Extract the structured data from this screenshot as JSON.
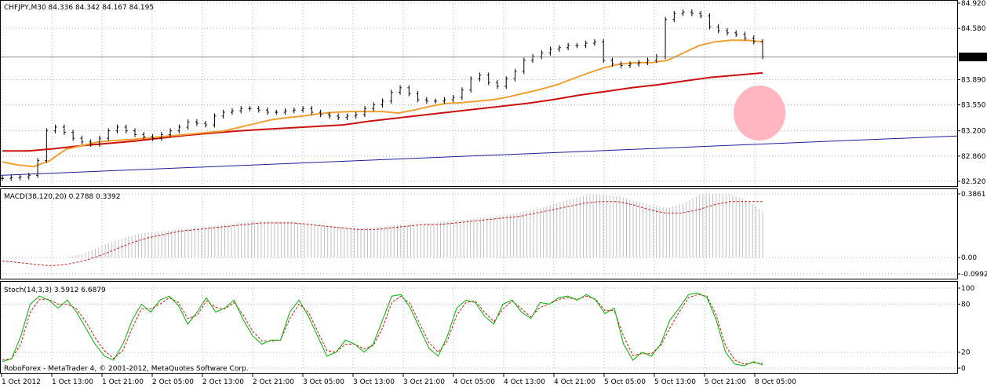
{
  "chart_data": [
    {
      "type": "ohlc",
      "panel": "main",
      "header": "CHFJPY,M30  84.336 84.342 84.167 84.195",
      "symbol": "CHFJPY",
      "timeframe": "M30",
      "last_ohlc": {
        "open": 84.336,
        "high": 84.342,
        "low": 84.167,
        "close": 84.195
      },
      "ylim": [
        82.52,
        84.92
      ],
      "y_ticks": [
        "84.920",
        "84.580",
        "84.195",
        "83.890",
        "83.550",
        "83.200",
        "82.860",
        "82.520"
      ],
      "current_price": "84.195",
      "grid": true,
      "series": [
        {
          "name": "",
          "kind": "close",
          "color": "#000000",
          "values": [
            82.56,
            82.57,
            82.58,
            82.6,
            82.8,
            83.2,
            83.25,
            83.18,
            83.1,
            83.05,
            83.02,
            83.1,
            83.2,
            83.25,
            83.2,
            83.15,
            83.12,
            83.1,
            83.15,
            83.2,
            83.25,
            83.32,
            83.3,
            83.28,
            83.4,
            83.45,
            83.47,
            83.5,
            83.5,
            83.48,
            83.45,
            83.45,
            83.47,
            83.48,
            83.5,
            83.45,
            83.42,
            83.4,
            83.38,
            83.4,
            83.42,
            83.5,
            83.55,
            83.6,
            83.72,
            83.78,
            83.7,
            83.62,
            83.6,
            83.6,
            83.62,
            83.65,
            83.75,
            83.9,
            83.95,
            83.85,
            83.8,
            83.9,
            84.0,
            84.15,
            84.2,
            84.25,
            84.3,
            84.32,
            84.35,
            84.35,
            84.38,
            84.4,
            84.15,
            84.1,
            84.08,
            84.1,
            84.12,
            84.15,
            84.2,
            84.7,
            84.78,
            84.8,
            84.78,
            84.75,
            84.6,
            84.55,
            84.52,
            84.5,
            84.45,
            84.4,
            84.2
          ]
        },
        {
          "name": "",
          "kind": "ma_fast",
          "color": "#f0a030",
          "values": [
            82.78,
            82.74,
            82.72,
            82.8,
            82.95,
            83.0,
            83.05,
            83.07,
            83.08,
            83.1,
            83.12,
            83.14,
            83.16,
            83.18,
            83.2,
            83.25,
            83.3,
            83.35,
            83.38,
            83.4,
            83.43,
            83.45,
            83.46,
            83.46,
            83.46,
            83.44,
            83.48,
            83.53,
            83.57,
            83.58,
            83.6,
            83.62,
            83.66,
            83.71,
            83.76,
            83.82,
            83.9,
            83.98,
            84.05,
            84.1,
            84.12,
            84.12,
            84.15,
            84.25,
            84.35,
            84.4,
            84.42,
            84.42,
            84.4
          ]
        },
        {
          "name": "",
          "kind": "ma_slow",
          "color": "#cc1010",
          "values": [
            82.93,
            82.93,
            82.96,
            83.0,
            83.03,
            83.06,
            83.1,
            83.14,
            83.17,
            83.2,
            83.22,
            83.24,
            83.26,
            83.28,
            83.33,
            83.37,
            83.41,
            83.45,
            83.49,
            83.53,
            83.57,
            83.62,
            83.68,
            83.73,
            83.78,
            83.82,
            83.87,
            83.92,
            83.95,
            83.98
          ]
        },
        {
          "name": "",
          "kind": "trendline",
          "color": "#1c1c9c",
          "values": [
            82.6,
            83.13
          ]
        }
      ],
      "annotation": {
        "kind": "highlight-circle",
        "color": "#ffb6c1"
      }
    },
    {
      "type": "bar+line",
      "panel": "macd",
      "header": "MACD(38,120,20) 0.2788 0.3392",
      "title": "MACD(38,120,20)",
      "values_shown": [
        "0.2788",
        "0.3392"
      ],
      "ylim": [
        -0.0992,
        0.3861
      ],
      "y_ticks": [
        "0.3861",
        "0.00",
        "-0.0992"
      ],
      "series": [
        {
          "name": "",
          "kind": "histogram",
          "color": "#c0c0c0",
          "values": [
            0.0,
            0.0,
            0.0,
            0.0,
            0.0,
            0.02,
            0.06,
            0.1,
            0.13,
            0.15,
            0.16,
            0.17,
            0.18,
            0.19,
            0.2,
            0.21,
            0.22,
            0.22,
            0.22,
            0.21,
            0.2,
            0.19,
            0.18,
            0.18,
            0.19,
            0.2,
            0.2,
            0.21,
            0.22,
            0.23,
            0.24,
            0.25,
            0.26,
            0.28,
            0.3,
            0.33,
            0.36,
            0.38,
            0.38,
            0.37,
            0.34,
            0.32,
            0.3,
            0.33,
            0.38,
            0.39,
            0.38,
            0.35,
            0.28
          ]
        },
        {
          "name": "",
          "kind": "signal",
          "color": "#cc2020",
          "values": [
            -0.02,
            -0.03,
            -0.04,
            -0.05,
            -0.04,
            -0.02,
            0.01,
            0.05,
            0.09,
            0.12,
            0.14,
            0.16,
            0.17,
            0.18,
            0.19,
            0.2,
            0.21,
            0.21,
            0.21,
            0.2,
            0.19,
            0.18,
            0.17,
            0.17,
            0.18,
            0.19,
            0.2,
            0.2,
            0.21,
            0.22,
            0.23,
            0.24,
            0.25,
            0.27,
            0.29,
            0.31,
            0.33,
            0.34,
            0.34,
            0.32,
            0.29,
            0.27,
            0.27,
            0.29,
            0.32,
            0.34,
            0.34,
            0.34
          ]
        }
      ]
    },
    {
      "type": "line",
      "panel": "stochastic",
      "header": "Stoch(14,3,3) 3.5912 6.6879",
      "title": "Stoch(14,3,3)",
      "values_shown": [
        "3.5912",
        "6.6879"
      ],
      "ylim": [
        0,
        100
      ],
      "y_ticks": [
        "100",
        "80",
        "20",
        "0"
      ],
      "series": [
        {
          "name": "",
          "kind": "main",
          "color": "#00b400",
          "values": [
            8,
            12,
            40,
            80,
            90,
            85,
            75,
            85,
            70,
            50,
            30,
            15,
            10,
            30,
            60,
            80,
            70,
            85,
            90,
            78,
            55,
            70,
            88,
            70,
            75,
            85,
            60,
            40,
            30,
            35,
            35,
            70,
            85,
            65,
            40,
            15,
            20,
            35,
            30,
            20,
            30,
            60,
            90,
            92,
            75,
            50,
            25,
            15,
            40,
            75,
            85,
            82,
            65,
            55,
            80,
            85,
            70,
            62,
            82,
            80,
            88,
            90,
            85,
            92,
            85,
            68,
            75,
            30,
            10,
            20,
            15,
            30,
            60,
            75,
            92,
            94,
            88,
            60,
            20,
            5,
            3,
            8,
            4
          ]
        },
        {
          "name": "",
          "kind": "signal",
          "color": "#dd1111",
          "values": [
            10,
            12,
            30,
            70,
            86,
            86,
            80,
            80,
            74,
            58,
            38,
            22,
            12,
            22,
            50,
            74,
            74,
            80,
            88,
            82,
            62,
            66,
            84,
            76,
            74,
            82,
            66,
            46,
            34,
            34,
            35,
            62,
            80,
            70,
            46,
            22,
            20,
            30,
            30,
            24,
            28,
            50,
            82,
            90,
            80,
            56,
            32,
            20,
            34,
            66,
            82,
            84,
            70,
            58,
            74,
            84,
            74,
            64,
            76,
            80,
            86,
            88,
            86,
            90,
            86,
            72,
            72,
            40,
            16,
            18,
            18,
            28,
            50,
            70,
            88,
            92,
            90,
            66,
            28,
            10,
            5,
            7,
            6
          ]
        }
      ]
    }
  ],
  "x_axis": {
    "tick_labels": [
      "1 Oct 2012",
      "1 Oct 13:00",
      "1 Oct 21:00",
      "2 Oct 05:00",
      "2 Oct 13:00",
      "2 Oct 21:00",
      "3 Oct 05:00",
      "3 Oct 13:00",
      "3 Oct 21:00",
      "4 Oct 05:00",
      "4 Oct 13:00",
      "4 Oct 21:00",
      "5 Oct 05:00",
      "5 Oct 13:00",
      "5 Oct 21:00",
      "8 Oct 05:00"
    ]
  },
  "watermark": "RoboForex - MetaTrader 4, © 2001-2012, MetaQuotes Software Corp.",
  "colors": {
    "background": "#ffffff",
    "grid": "#b4b4b4",
    "candle": "#000000",
    "price_box": "#000000",
    "price_box_text": "#ffffff"
  }
}
